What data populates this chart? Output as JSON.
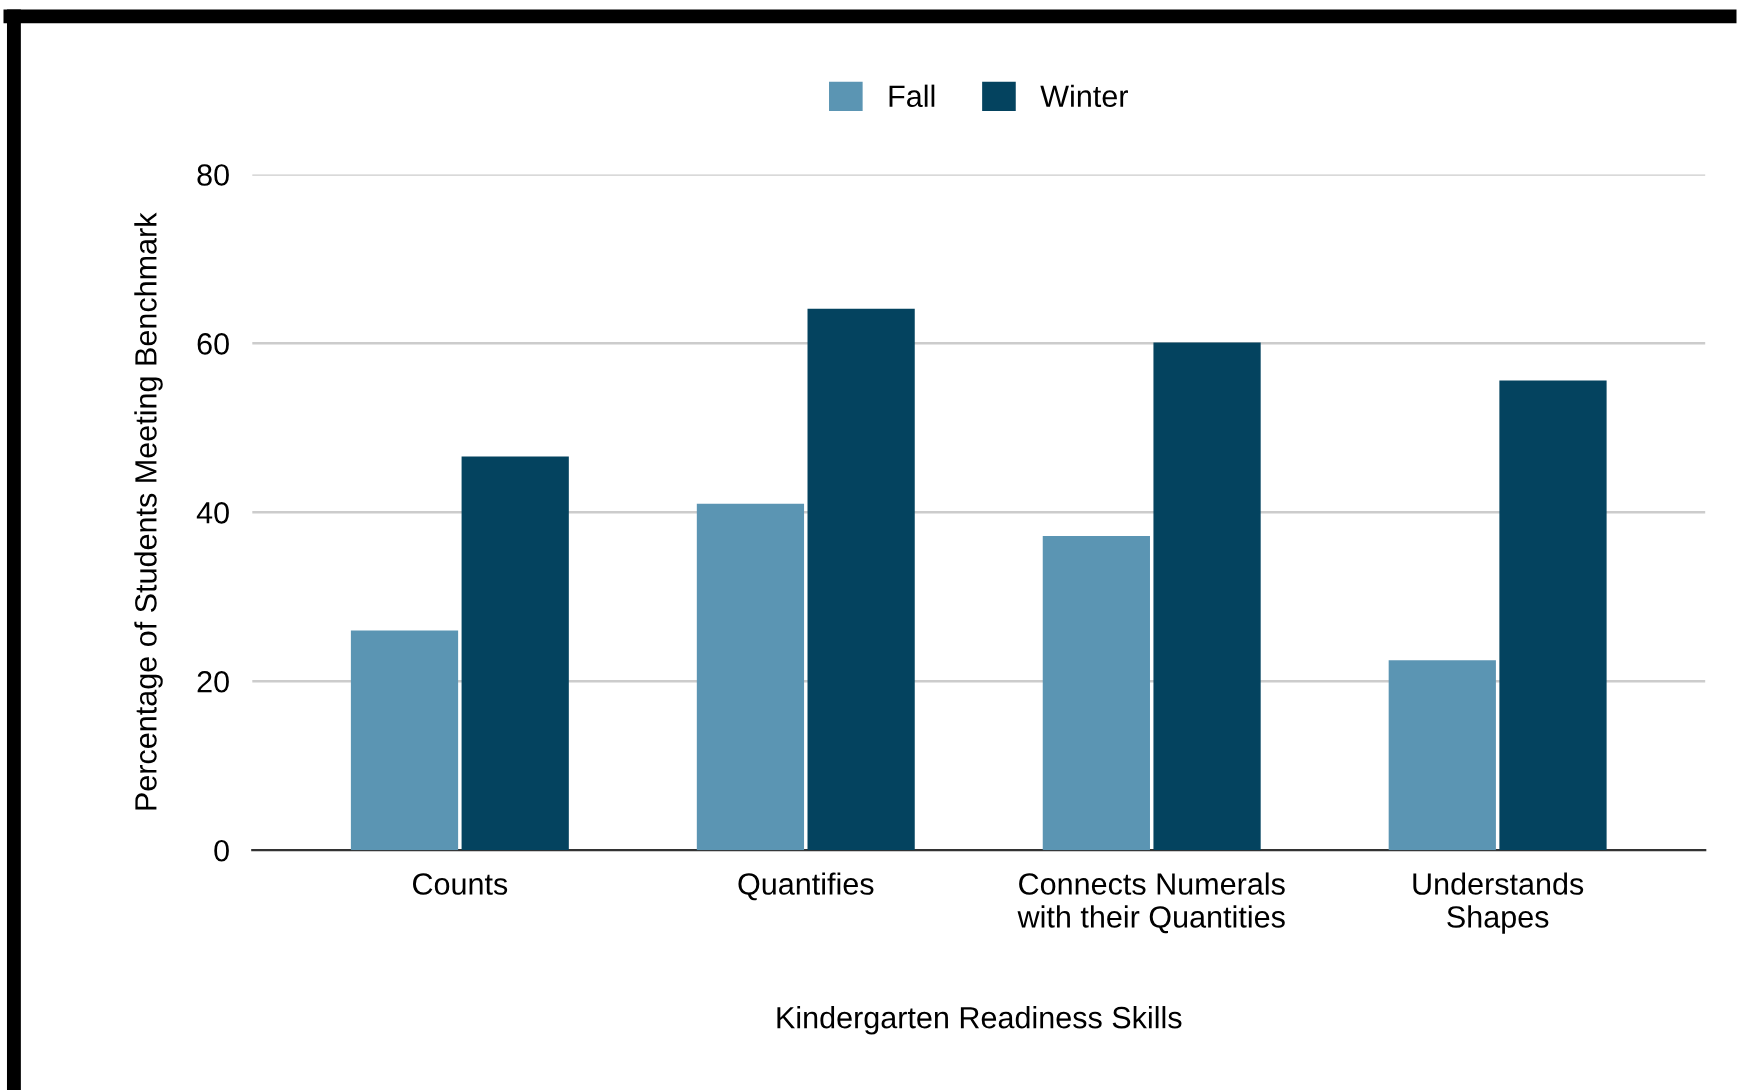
{
  "chart_data": {
    "type": "bar",
    "xlabel": "Kindergarten Readiness Skills",
    "ylabel": "Percentage of Students Meeting Benchmark",
    "categories": [
      "Counts",
      "Quantifies",
      "Connects Numerals\nwith their Quantities",
      "Understands\nShapes"
    ],
    "series": [
      {
        "name": "Fall",
        "color": "#5b95b3",
        "values": [
          26,
          41,
          37.2,
          22.5
        ]
      },
      {
        "name": "Winter",
        "color": "#04435f",
        "values": [
          46.6,
          64.1,
          60.1,
          55.6
        ]
      }
    ],
    "ylim": [
      0,
      80
    ],
    "yticks": [
      0,
      20,
      40,
      60,
      80
    ],
    "grid": "y",
    "legend": "top"
  }
}
